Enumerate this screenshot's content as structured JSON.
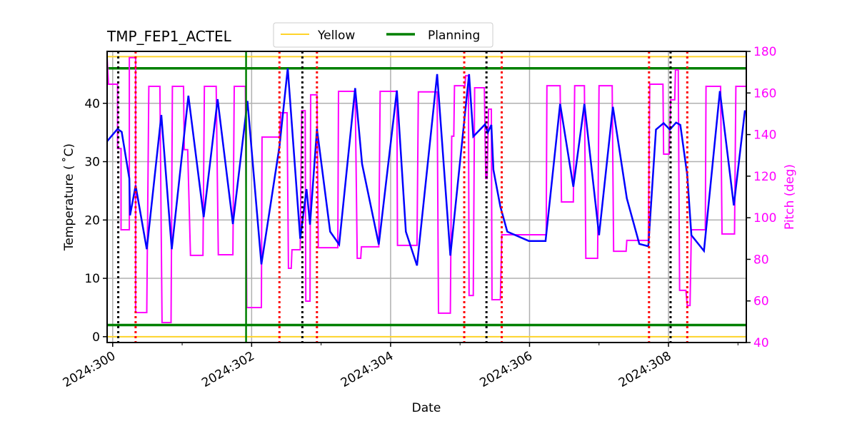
{
  "chart_data": {
    "type": "line",
    "title": "TMP_FEP1_ACTEL",
    "xlabel": "Date",
    "ylabel": "Temperature ($^\\circ$C)",
    "ylabel_display": "Temperature ( ˚C)",
    "y2label": "Pitch (deg)",
    "xlim": [
      299.92,
      309.12
    ],
    "ylim": [
      -1,
      48.9
    ],
    "y2lim": [
      40,
      180
    ],
    "x_ticks": [
      {
        "value": 300,
        "label": "2024:300"
      },
      {
        "value": 302,
        "label": "2024:302"
      },
      {
        "value": 304,
        "label": "2024:304"
      },
      {
        "value": 306,
        "label": "2024:306"
      },
      {
        "value": 308,
        "label": "2024:308"
      }
    ],
    "x_minor_ticks": [
      301,
      303,
      305,
      307,
      309
    ],
    "y_ticks": [
      0,
      10,
      20,
      30,
      40
    ],
    "y2_ticks": [
      40,
      60,
      80,
      100,
      120,
      140,
      160,
      180
    ],
    "grid": true,
    "legend": {
      "placement": "top-center",
      "entries": [
        "Yellow",
        "Planning"
      ]
    },
    "colors": {
      "temperature": "#0000ff",
      "pitch": "#ff00ff",
      "yellow": "#ffd42a",
      "planning": "#008000",
      "red_marker": "#ff0000",
      "black_marker": "#000000",
      "grid": "#b0b0b0"
    },
    "limits": {
      "yellow": [
        48,
        0
      ],
      "planning": [
        46,
        2
      ]
    },
    "vertical_lines": {
      "green_solid": [
        301.92
      ],
      "black_dotted": [
        300.08,
        302.73,
        305.38,
        308.03
      ],
      "red_dotted": [
        300.33,
        302.4,
        302.94,
        305.06,
        305.6,
        307.72,
        308.27
      ]
    },
    "series": [
      {
        "axis": "left",
        "color": "#0000ff",
        "points": [
          [
            299.92,
            33.5
          ],
          [
            300.07,
            35.6
          ],
          [
            300.13,
            35.1
          ],
          [
            300.24,
            27.1
          ],
          [
            300.25,
            20.8
          ],
          [
            300.33,
            25.9
          ],
          [
            300.49,
            15.0
          ],
          [
            300.7,
            38.0
          ],
          [
            300.85,
            15.0
          ],
          [
            301.09,
            41.3
          ],
          [
            301.31,
            20.5
          ],
          [
            301.51,
            40.7
          ],
          [
            301.73,
            19.3
          ],
          [
            301.94,
            40.4
          ],
          [
            302.14,
            12.4
          ],
          [
            302.4,
            32.6
          ],
          [
            302.52,
            46.0
          ],
          [
            302.7,
            16.8
          ],
          [
            302.79,
            25.3
          ],
          [
            302.84,
            19.2
          ],
          [
            302.94,
            35.6
          ],
          [
            303.13,
            18.0
          ],
          [
            303.26,
            15.8
          ],
          [
            303.49,
            42.6
          ],
          [
            303.59,
            29.6
          ],
          [
            303.83,
            15.8
          ],
          [
            304.09,
            42.2
          ],
          [
            304.22,
            18.0
          ],
          [
            304.38,
            12.2
          ],
          [
            304.67,
            45.0
          ],
          [
            304.86,
            13.9
          ],
          [
            305.13,
            45.0
          ],
          [
            305.19,
            34.3
          ],
          [
            305.36,
            36.4
          ],
          [
            305.4,
            35.0
          ],
          [
            305.45,
            36.3
          ],
          [
            305.48,
            28.6
          ],
          [
            305.58,
            22.3
          ],
          [
            305.68,
            18.0
          ],
          [
            305.99,
            16.4
          ],
          [
            306.23,
            16.4
          ],
          [
            306.44,
            39.9
          ],
          [
            306.63,
            25.7
          ],
          [
            306.79,
            39.9
          ],
          [
            307.0,
            17.4
          ],
          [
            307.2,
            39.4
          ],
          [
            307.4,
            23.7
          ],
          [
            307.58,
            15.9
          ],
          [
            307.71,
            15.5
          ],
          [
            307.82,
            35.5
          ],
          [
            307.93,
            36.6
          ],
          [
            308.02,
            35.5
          ],
          [
            308.11,
            36.7
          ],
          [
            308.17,
            36.3
          ],
          [
            308.27,
            27.7
          ],
          [
            308.33,
            17.4
          ],
          [
            308.51,
            14.7
          ],
          [
            308.74,
            42.1
          ],
          [
            308.94,
            22.5
          ],
          [
            309.1,
            38.8
          ]
        ]
      },
      {
        "axis": "right",
        "color": "#ff00ff",
        "points": [
          [
            299.92,
            177
          ],
          [
            299.94,
            164.2
          ],
          [
            300.07,
            164.2
          ],
          [
            300.07,
            133.3
          ],
          [
            300.12,
            133.3
          ],
          [
            300.12,
            94.2
          ],
          [
            300.24,
            94.2
          ],
          [
            300.24,
            177
          ],
          [
            300.33,
            177
          ],
          [
            300.33,
            54.4
          ],
          [
            300.49,
            54.4
          ],
          [
            300.52,
            163.2
          ],
          [
            300.68,
            163.2
          ],
          [
            300.71,
            49.6
          ],
          [
            300.84,
            49.6
          ],
          [
            300.86,
            163.2
          ],
          [
            301.02,
            163.2
          ],
          [
            301.03,
            132.7
          ],
          [
            301.08,
            132.7
          ],
          [
            301.12,
            81.9
          ],
          [
            301.3,
            81.9
          ],
          [
            301.32,
            163.2
          ],
          [
            301.49,
            163.2
          ],
          [
            301.52,
            82.2
          ],
          [
            301.73,
            82.2
          ],
          [
            301.75,
            163.2
          ],
          [
            301.91,
            163.2
          ],
          [
            301.93,
            56.8
          ],
          [
            302.14,
            56.8
          ],
          [
            302.15,
            138.8
          ],
          [
            302.4,
            138.8
          ],
          [
            302.42,
            150.5
          ],
          [
            302.51,
            150.5
          ],
          [
            302.53,
            75.7
          ],
          [
            302.57,
            75.7
          ],
          [
            302.58,
            84.6
          ],
          [
            302.7,
            84.6
          ],
          [
            302.72,
            151.5
          ],
          [
            302.77,
            151.5
          ],
          [
            302.78,
            59.9
          ],
          [
            302.84,
            59.9
          ],
          [
            302.85,
            159.1
          ],
          [
            302.94,
            159.1
          ],
          [
            302.96,
            85.6
          ],
          [
            303.24,
            85.6
          ],
          [
            303.25,
            160.8
          ],
          [
            303.49,
            160.8
          ],
          [
            303.52,
            80.5
          ],
          [
            303.57,
            80.5
          ],
          [
            303.58,
            86.0
          ],
          [
            303.83,
            86.0
          ],
          [
            303.85,
            160.8
          ],
          [
            304.09,
            160.8
          ],
          [
            304.1,
            86.7
          ],
          [
            304.38,
            86.7
          ],
          [
            304.4,
            160.5
          ],
          [
            304.67,
            160.5
          ],
          [
            304.69,
            54.1
          ],
          [
            304.86,
            54.1
          ],
          [
            304.88,
            139.2
          ],
          [
            304.91,
            139.2
          ],
          [
            304.92,
            163.5
          ],
          [
            305.07,
            163.5
          ],
          [
            305.08,
            168.3
          ],
          [
            305.12,
            168.3
          ],
          [
            305.13,
            62.6
          ],
          [
            305.19,
            62.6
          ],
          [
            305.21,
            162.5
          ],
          [
            305.35,
            162.5
          ],
          [
            305.37,
            118.9
          ],
          [
            305.39,
            118.9
          ],
          [
            305.41,
            152.2
          ],
          [
            305.45,
            152.2
          ],
          [
            305.46,
            60.6
          ],
          [
            305.58,
            60.6
          ],
          [
            305.6,
            91.8
          ],
          [
            306.24,
            91.8
          ],
          [
            306.25,
            163.5
          ],
          [
            306.44,
            163.5
          ],
          [
            306.46,
            107.6
          ],
          [
            306.63,
            107.6
          ],
          [
            306.65,
            163.5
          ],
          [
            306.79,
            163.5
          ],
          [
            306.81,
            80.5
          ],
          [
            306.98,
            80.5
          ],
          [
            307.0,
            163.5
          ],
          [
            307.19,
            163.5
          ],
          [
            307.21,
            83.9
          ],
          [
            307.39,
            83.9
          ],
          [
            307.4,
            89.1
          ],
          [
            307.71,
            89.1
          ],
          [
            307.73,
            164.2
          ],
          [
            307.92,
            164.2
          ],
          [
            307.93,
            130.6
          ],
          [
            308.01,
            130.6
          ],
          [
            308.03,
            156.7
          ],
          [
            308.09,
            156.7
          ],
          [
            308.1,
            171.1
          ],
          [
            308.14,
            171.1
          ],
          [
            308.16,
            65.1
          ],
          [
            308.25,
            65.1
          ],
          [
            308.27,
            57.8
          ],
          [
            308.31,
            57.8
          ],
          [
            308.33,
            94.2
          ],
          [
            308.53,
            94.2
          ],
          [
            308.54,
            163.2
          ],
          [
            308.75,
            163.2
          ],
          [
            308.77,
            92.2
          ],
          [
            308.95,
            92.2
          ],
          [
            308.97,
            163.2
          ],
          [
            309.11,
            163.2
          ]
        ]
      }
    ]
  }
}
